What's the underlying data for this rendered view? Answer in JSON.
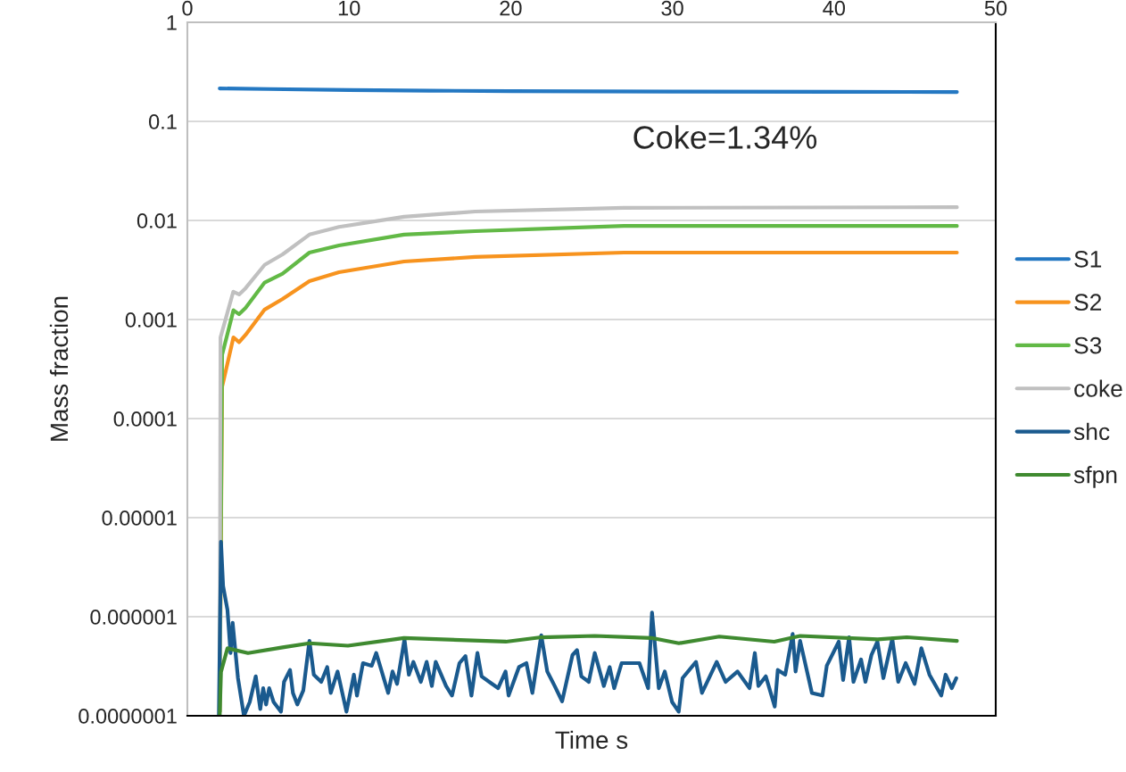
{
  "chart_data": {
    "type": "line",
    "xlabel": "Time s",
    "ylabel": "Mass fraction",
    "log": "y",
    "grid": "y",
    "legend": "right",
    "annotations": [
      "Coke=1.34%"
    ],
    "xlim": [
      0,
      50
    ],
    "xticks": [
      0,
      10,
      20,
      30,
      40,
      50
    ],
    "ylim": [
      1e-07,
      1
    ],
    "yticks": [
      {
        "value": 1e-07,
        "label": "0.0000001"
      },
      {
        "value": 1e-06,
        "label": "0.000001"
      },
      {
        "value": 1e-05,
        "label": "0.00001"
      },
      {
        "value": 0.0001,
        "label": "0.0001"
      },
      {
        "value": 0.001,
        "label": "0.001"
      },
      {
        "value": 0.01,
        "label": "0.01"
      },
      {
        "value": 0.1,
        "label": "0.1"
      },
      {
        "value": 1,
        "label": "1"
      }
    ],
    "series": [
      {
        "name": "S1",
        "color": "#2478c2",
        "x": [
          2,
          5,
          10,
          15,
          20,
          30,
          40,
          47.6
        ],
        "values": [
          0.215,
          0.212,
          0.207,
          0.204,
          0.202,
          0.2,
          0.199,
          0.198
        ]
      },
      {
        "name": "S2",
        "color": "#f7931e",
        "x": [
          2.0,
          2.15,
          2.48,
          2.85,
          3.2,
          3.6,
          4.78,
          5.89,
          7.55,
          9.38,
          13.4,
          17.8,
          27,
          47.6
        ],
        "values": [
          1.1e-07,
          0.00021,
          0.00036,
          0.00066,
          0.00059,
          0.0007,
          0.00126,
          0.00161,
          0.00244,
          0.003,
          0.00385,
          0.00428,
          0.00474,
          0.00474
        ]
      },
      {
        "name": "S3",
        "color": "#62b946",
        "x": [
          2.0,
          2.15,
          2.85,
          3.2,
          3.6,
          4.78,
          5.89,
          7.55,
          9.38,
          13.4,
          17.8,
          27,
          47.6
        ],
        "values": [
          1.1e-07,
          0.00044,
          0.00124,
          0.00113,
          0.00131,
          0.00236,
          0.0029,
          0.00474,
          0.0056,
          0.0072,
          0.0078,
          0.0088,
          0.0088
        ]
      },
      {
        "name": "coke",
        "color": "#c0c0c0",
        "x": [
          2.0,
          2.05,
          2.84,
          3.2,
          3.6,
          4.78,
          5.89,
          7.55,
          9.38,
          13.4,
          17.8,
          27,
          47.6
        ],
        "values": [
          1.1e-07,
          0.00066,
          0.00191,
          0.00179,
          0.00207,
          0.00356,
          0.00455,
          0.0072,
          0.0086,
          0.0109,
          0.0123,
          0.0134,
          0.0136
        ]
      },
      {
        "name": "shc",
        "color": "#1a5a8e",
        "x": [
          1.95,
          2.08,
          2.21,
          2.48,
          2.67,
          2.8,
          3.13,
          3.5,
          3.86,
          4.23,
          4.51,
          4.69,
          4.87,
          5.06,
          5.33,
          5.79,
          5.98,
          6.35,
          6.53,
          6.8,
          7.17,
          7.55,
          7.82,
          8.28,
          8.65,
          8.87,
          9.29,
          9.84,
          10.3,
          10.49,
          10.86,
          11.4,
          11.68,
          12.42,
          12.69,
          12.97,
          13.43,
          13.7,
          13.98,
          14.44,
          14.8,
          15.12,
          15.36,
          16,
          16.37,
          16.83,
          17.2,
          17.57,
          17.94,
          18.2,
          18.67,
          19.22,
          19.68,
          19.87,
          20.51,
          20.97,
          21.34,
          21.89,
          22.26,
          22.72,
          23.18,
          23.82,
          24.1,
          24.37,
          24.83,
          25.2,
          25.76,
          26.12,
          26.4,
          26.86,
          27.96,
          28.5,
          28.74,
          29.16,
          29.53,
          29.98,
          30.39,
          30.63,
          31.46,
          31.83,
          32.74,
          33.29,
          34.03,
          34.77,
          35.1,
          35.32,
          35.78,
          36.33,
          36.52,
          36.98,
          37.44,
          37.62,
          37.9,
          38.63,
          39.28,
          39.55,
          40.29,
          40.56,
          40.93,
          41.2,
          41.67,
          41.94,
          42.31,
          42.68,
          43.05,
          43.6,
          43.97,
          44.43,
          44.98,
          45.4,
          45.9,
          46.63,
          46.9,
          47.28,
          47.56
        ],
        "values": [
          1e-07,
          5.7e-06,
          2.04e-06,
          1.17e-06,
          4.3e-07,
          8.7e-07,
          2.4e-07,
          1e-07,
          1.38e-07,
          2.5e-07,
          1.17e-07,
          1.9e-07,
          1.3e-07,
          1.9e-07,
          1.38e-07,
          1.1e-07,
          2.2e-07,
          2.9e-07,
          1.7e-07,
          1.3e-07,
          1.8e-07,
          5.7e-07,
          2.6e-07,
          2.2e-07,
          3.1e-07,
          1.7e-07,
          2.8e-07,
          1.1e-07,
          2.6e-07,
          1.6e-07,
          3.4e-07,
          3.2e-07,
          4.3e-07,
          1.7e-07,
          2.8e-07,
          2.1e-07,
          5.9e-07,
          2.6e-07,
          3.5e-07,
          2.2e-07,
          3.5e-07,
          2e-07,
          3.5e-07,
          2e-07,
          1.6e-07,
          3.4e-07,
          4e-07,
          1.6e-07,
          4.3e-07,
          2.5e-07,
          2.2e-07,
          1.9e-07,
          2.8e-07,
          1.6e-07,
          3.1e-07,
          3.4e-07,
          1.7e-07,
          6.5e-07,
          2.8e-07,
          2e-07,
          1.4e-07,
          4.1e-07,
          4.6e-07,
          2.5e-07,
          2.2e-07,
          4.3e-07,
          2e-07,
          3.1e-07,
          1.9e-07,
          3.4e-07,
          3.4e-07,
          1.9e-07,
          1.1e-06,
          1.9e-07,
          2.8e-07,
          1.38e-07,
          1.1e-07,
          2.4e-07,
          3.5e-07,
          1.7e-07,
          3.5e-07,
          2.2e-07,
          2.8e-07,
          1.9e-07,
          4.3e-07,
          2e-07,
          2.5e-07,
          1.24e-07,
          2.9e-07,
          2.6e-07,
          6.7e-07,
          2.8e-07,
          5.7e-07,
          1.7e-07,
          1.6e-07,
          3.2e-07,
          5.6e-07,
          2.3e-07,
          6.2e-07,
          2.2e-07,
          3.7e-07,
          2.2e-07,
          4.1e-07,
          5.6e-07,
          2.4e-07,
          6e-07,
          2.2e-07,
          3.4e-07,
          2.1e-07,
          4.8e-07,
          2.6e-07,
          1.6e-07,
          2.6e-07,
          1.9e-07,
          2.4e-07
        ]
      },
      {
        "name": "sfpn",
        "color": "#3f8a30",
        "x": [
          2.0,
          2.08,
          2.48,
          3.75,
          5.89,
          7.55,
          9.93,
          13.4,
          19.7,
          21.9,
          25.2,
          28.7,
          30.4,
          32.9,
          36.3,
          37.9,
          42.7,
          44.5,
          47.6
        ],
        "values": [
          1e-07,
          2.76e-07,
          4.8e-07,
          4.3e-07,
          4.9e-07,
          5.4e-07,
          5.1e-07,
          6.1e-07,
          5.6e-07,
          6.2e-07,
          6.4e-07,
          6.1e-07,
          5.4e-07,
          6.3e-07,
          5.6e-07,
          6.4e-07,
          5.9e-07,
          6.2e-07,
          5.7e-07
        ]
      }
    ]
  }
}
